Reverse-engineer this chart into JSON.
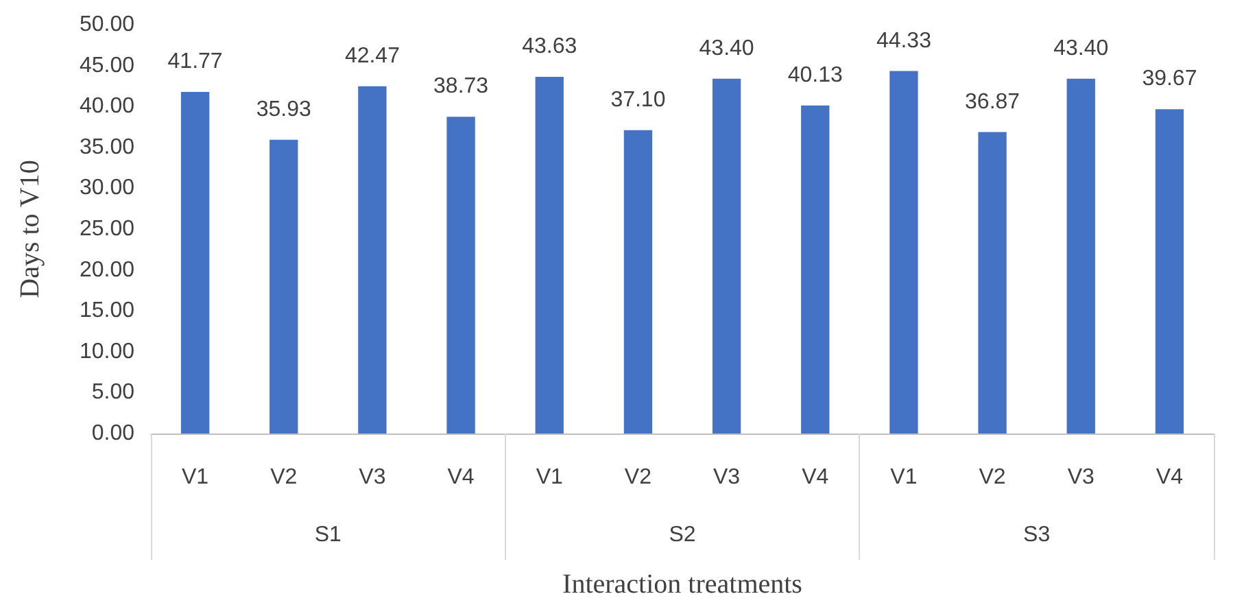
{
  "chart_data": {
    "type": "bar",
    "xlabel": "Interaction treatments",
    "ylabel": "Days to V10",
    "categories": [
      "V1",
      "V2",
      "V3",
      "V4",
      "V1",
      "V2",
      "V3",
      "V4",
      "V1",
      "V2",
      "V3",
      "V4"
    ],
    "annotations": [
      "S1",
      "S2",
      "S3"
    ],
    "values": [
      41.77,
      35.93,
      42.47,
      38.73,
      43.63,
      37.1,
      43.4,
      40.13,
      44.33,
      36.87,
      43.4,
      39.67
    ],
    "value_labels": [
      "41.77",
      "35.93",
      "42.47",
      "38.73",
      "43.63",
      "37.10",
      "43.40",
      "40.13",
      "44.33",
      "36.87",
      "43.40",
      "39.67"
    ],
    "color": "#4472c4",
    "ylim": [
      0,
      50
    ],
    "yticks": [
      {
        "value": 0,
        "label": "0.00"
      },
      {
        "value": 5,
        "label": "5.00"
      },
      {
        "value": 10,
        "label": "10.00"
      },
      {
        "value": 15,
        "label": "15.00"
      },
      {
        "value": 20,
        "label": "20.00"
      },
      {
        "value": 25,
        "label": "25.00"
      },
      {
        "value": 30,
        "label": "30.00"
      },
      {
        "value": 35,
        "label": "35.00"
      },
      {
        "value": 40,
        "label": "40.00"
      },
      {
        "value": 45,
        "label": "45.00"
      },
      {
        "value": 50,
        "label": "50.00"
      }
    ],
    "grid": false
  }
}
